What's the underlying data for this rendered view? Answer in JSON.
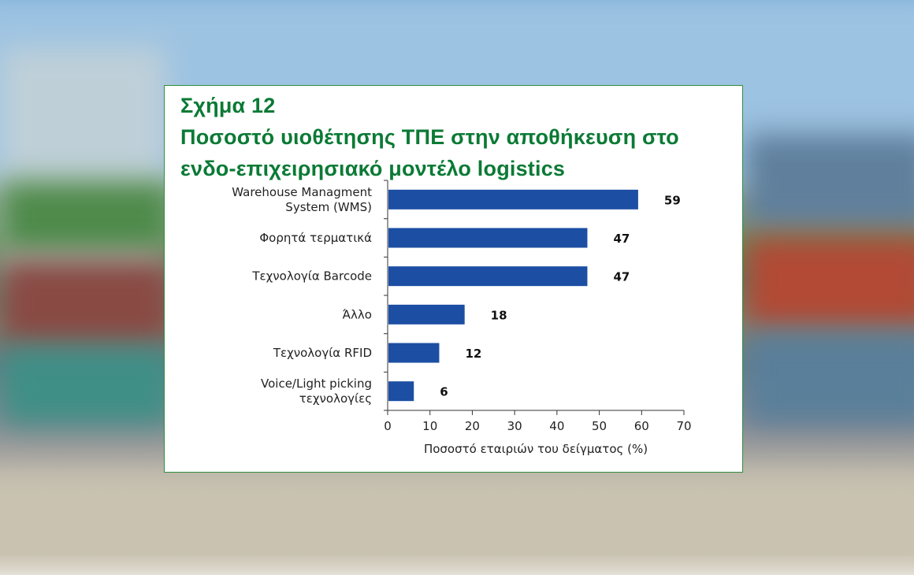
{
  "figure": {
    "number_label": "Σχήμα 12",
    "title_line1": "Ποσοστό υιοθέτησης ΤΠΕ στην αποθήκευση στο",
    "title_line2": "ενδο-επιχειρησιακό μοντέλο logistics",
    "title_color": "#0b7a35",
    "border_color": "#2f8f3d"
  },
  "chart_data": {
    "type": "bar",
    "orientation": "horizontal",
    "categories": [
      [
        "Warehouse Managment",
        "System (WMS)"
      ],
      [
        "Φορητά τερματικά"
      ],
      [
        "Τεχνολογία Barcode"
      ],
      [
        "Άλλο"
      ],
      [
        "Τεχνολογία RFID"
      ],
      [
        "Voice/Light picking",
        "τεχνολογίες"
      ]
    ],
    "values": [
      59,
      47,
      47,
      18,
      12,
      6
    ],
    "data_labels": [
      "59",
      "47",
      "47",
      "18",
      "12",
      "6"
    ],
    "xlabel": "Ποσοστό εταιριών του δείγματος (%)",
    "xlim": [
      0,
      70
    ],
    "xticks": [
      0,
      10,
      20,
      30,
      40,
      50,
      60,
      70
    ],
    "grid": false,
    "bar_color": "#1c4fa3"
  }
}
